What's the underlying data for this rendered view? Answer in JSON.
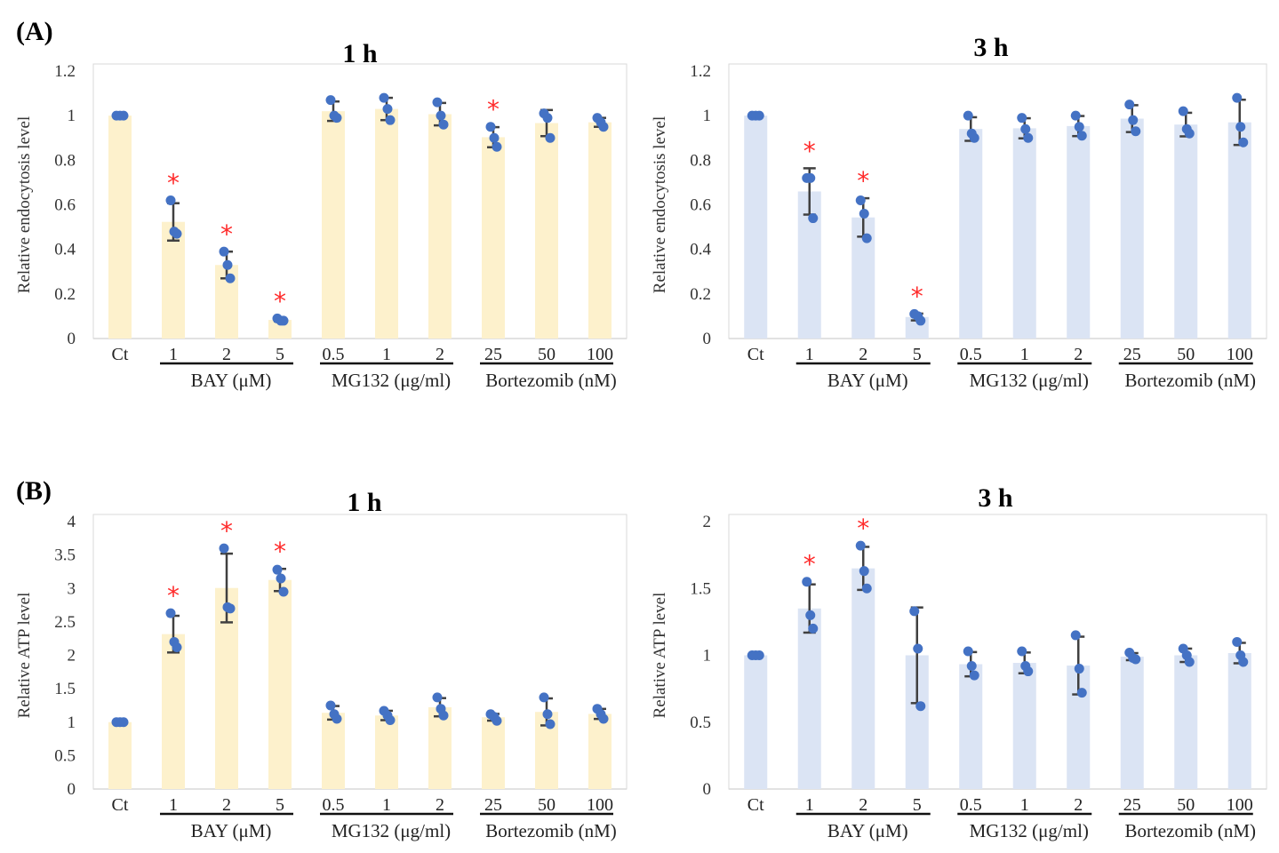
{
  "panel_labels": [
    "(A)",
    "(B)"
  ],
  "colors": {
    "yellow_bar": "#fdf1cc",
    "blue_bar": "#dbe4f4",
    "dot": "#4472c4",
    "error": "#404040",
    "star": "#ff2a2a"
  },
  "chart_data": [
    {
      "type": "bar",
      "panel": "(A)",
      "title": "1 h",
      "ylabel": "Relative endocytosis level",
      "ylim": [
        0,
        1.2
      ],
      "yticks": [
        "0",
        "0.2",
        "0.4",
        "0.6",
        "0.8",
        "1",
        "1.2"
      ],
      "ytick_values": [
        0,
        0.2,
        0.4,
        0.6,
        0.8,
        1,
        1.2
      ],
      "categories": [
        "Ct",
        "1",
        "2",
        "5",
        "0.5",
        "1",
        "2",
        "25",
        "50",
        "100"
      ],
      "groups": [
        {
          "label": "BAY (μM)",
          "from": 1,
          "to": 3
        },
        {
          "label": "MG132 (μg/ml)",
          "from": 4,
          "to": 6
        },
        {
          "label": "Bortezomib (nM)",
          "from": 7,
          "to": 9
        }
      ],
      "bar_color": "yellow",
      "points": [
        [
          1,
          1,
          1
        ],
        [
          0.62,
          0.48,
          0.47
        ],
        [
          0.39,
          0.33,
          0.27
        ],
        [
          0.09,
          0.08,
          0.08
        ],
        [
          1.07,
          1.0,
          0.99
        ],
        [
          1.08,
          1.03,
          0.98
        ],
        [
          1.06,
          1.0,
          0.96
        ],
        [
          0.95,
          0.9,
          0.86
        ],
        [
          1.01,
          0.99,
          0.9
        ],
        [
          0.99,
          0.97,
          0.95
        ]
      ],
      "significant": [
        1,
        2,
        3,
        7
      ],
      "star": "*"
    },
    {
      "type": "bar",
      "panel": "(A)",
      "title": "3 h",
      "ylabel": "Relative endocytosis level",
      "ylim": [
        0,
        1.2
      ],
      "yticks": [
        "0",
        "0.2",
        "0.4",
        "0.6",
        "0.8",
        "1",
        "1.2"
      ],
      "ytick_values": [
        0,
        0.2,
        0.4,
        0.6,
        0.8,
        1,
        1.2
      ],
      "categories": [
        "Ct",
        "1",
        "2",
        "5",
        "0.5",
        "1",
        "2",
        "25",
        "50",
        "100"
      ],
      "groups": [
        {
          "label": "BAY (μM)",
          "from": 1,
          "to": 3
        },
        {
          "label": "MG132 (μg/ml)",
          "from": 4,
          "to": 6
        },
        {
          "label": "Bortezomib (nM)",
          "from": 7,
          "to": 9
        }
      ],
      "bar_color": "blue",
      "points": [
        [
          1,
          1,
          1
        ],
        [
          0.72,
          0.72,
          0.54
        ],
        [
          0.62,
          0.56,
          0.45
        ],
        [
          0.11,
          0.1,
          0.08
        ],
        [
          1.0,
          0.92,
          0.9
        ],
        [
          0.99,
          0.94,
          0.9
        ],
        [
          1.0,
          0.95,
          0.91
        ],
        [
          1.05,
          0.98,
          0.93
        ],
        [
          1.02,
          0.94,
          0.92
        ],
        [
          1.08,
          0.95,
          0.88
        ]
      ],
      "significant": [
        1,
        2,
        3
      ],
      "star": "*"
    },
    {
      "type": "bar",
      "panel": "(B)",
      "title": "1 h",
      "ylabel": "Relative ATP level",
      "ylim": [
        0,
        4
      ],
      "yticks": [
        "0",
        "0.5",
        "1",
        "1.5",
        "2",
        "2.5",
        "3",
        "3.5",
        "4"
      ],
      "ytick_values": [
        0,
        0.5,
        1,
        1.5,
        2,
        2.5,
        3,
        3.5,
        4
      ],
      "categories": [
        "Ct",
        "1",
        "2",
        "5",
        "0.5",
        "1",
        "2",
        "25",
        "50",
        "100"
      ],
      "groups": [
        {
          "label": "BAY (μM)",
          "from": 1,
          "to": 3
        },
        {
          "label": "MG132 (μg/ml)",
          "from": 4,
          "to": 6
        },
        {
          "label": "Bortezomib (nM)",
          "from": 7,
          "to": 9
        }
      ],
      "bar_color": "yellow",
      "points": [
        [
          1,
          1,
          1
        ],
        [
          2.63,
          2.2,
          2.12
        ],
        [
          3.6,
          2.72,
          2.7
        ],
        [
          3.28,
          3.15,
          2.95
        ],
        [
          1.25,
          1.12,
          1.05
        ],
        [
          1.17,
          1.1,
          1.03
        ],
        [
          1.37,
          1.2,
          1.1
        ],
        [
          1.12,
          1.08,
          1.02
        ],
        [
          1.37,
          1.12,
          0.97
        ],
        [
          1.2,
          1.12,
          1.05
        ]
      ],
      "significant": [
        1,
        2,
        3
      ],
      "star": "*"
    },
    {
      "type": "bar",
      "panel": "(B)",
      "title": "3 h",
      "ylabel": "Relative ATP level",
      "ylim": [
        0,
        2
      ],
      "yticks": [
        "0",
        "0.5",
        "1",
        "1.5",
        "2"
      ],
      "ytick_values": [
        0,
        0.5,
        1,
        1.5,
        2
      ],
      "categories": [
        "Ct",
        "1",
        "2",
        "5",
        "0.5",
        "1",
        "2",
        "25",
        "50",
        "100"
      ],
      "groups": [
        {
          "label": "BAY (μM)",
          "from": 1,
          "to": 3
        },
        {
          "label": "MG132 (μg/ml)",
          "from": 4,
          "to": 6
        },
        {
          "label": "Bortezomib (nM)",
          "from": 7,
          "to": 9
        }
      ],
      "bar_color": "blue",
      "points": [
        [
          1,
          1,
          1
        ],
        [
          1.55,
          1.3,
          1.2
        ],
        [
          1.82,
          1.63,
          1.5
        ],
        [
          1.33,
          1.05,
          0.62
        ],
        [
          1.03,
          0.92,
          0.85
        ],
        [
          1.03,
          0.92,
          0.88
        ],
        [
          1.15,
          0.9,
          0.72
        ],
        [
          1.02,
          0.98,
          0.97
        ],
        [
          1.05,
          1.0,
          0.95
        ],
        [
          1.1,
          1.0,
          0.95
        ]
      ],
      "significant": [
        1,
        2
      ],
      "star": "*"
    }
  ]
}
